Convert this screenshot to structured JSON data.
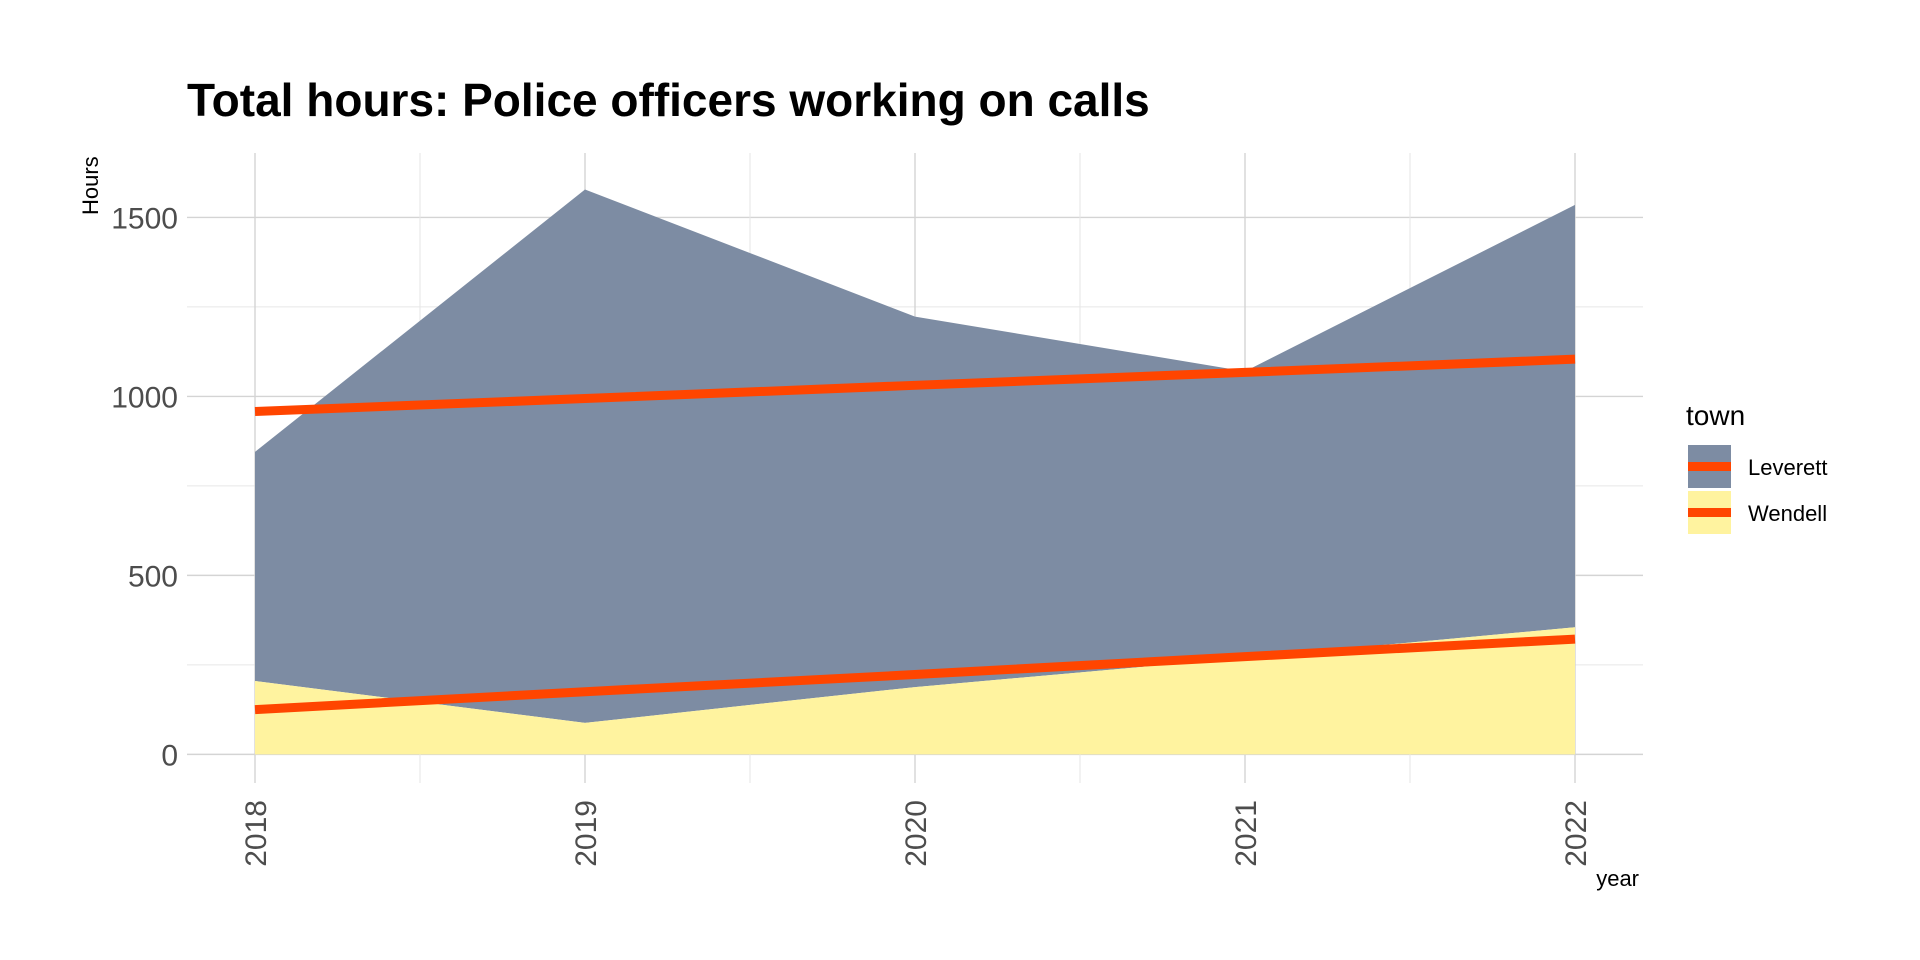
{
  "chart_data": {
    "type": "area",
    "title": "Total hours: Police officers working on calls",
    "xlabel": "year",
    "ylabel": "Hours",
    "x": [
      "2018",
      "2019",
      "2020",
      "2021",
      "2022"
    ],
    "ylim": [
      -80,
      1680
    ],
    "yticks": [
      0,
      500,
      1000,
      1500
    ],
    "grid": true,
    "stacked": true,
    "legend": {
      "title": "town",
      "position": "right"
    },
    "series": [
      {
        "name": "Leverett",
        "values": [
          640,
          1490,
          1035,
          800,
          1180
        ],
        "fill": "#7d8ca3"
      },
      {
        "name": "Wendell",
        "values": [
          205,
          88,
          188,
          270,
          355
        ],
        "fill": "#fff39f"
      }
    ],
    "trend_lines": [
      {
        "series": "Leverett",
        "values": [
          958,
          994,
          1031,
          1067,
          1104
        ],
        "color": "#ff4500"
      },
      {
        "series": "Wendell",
        "values": [
          125,
          175,
          223,
          273,
          322
        ],
        "color": "#ff4500"
      }
    ]
  }
}
